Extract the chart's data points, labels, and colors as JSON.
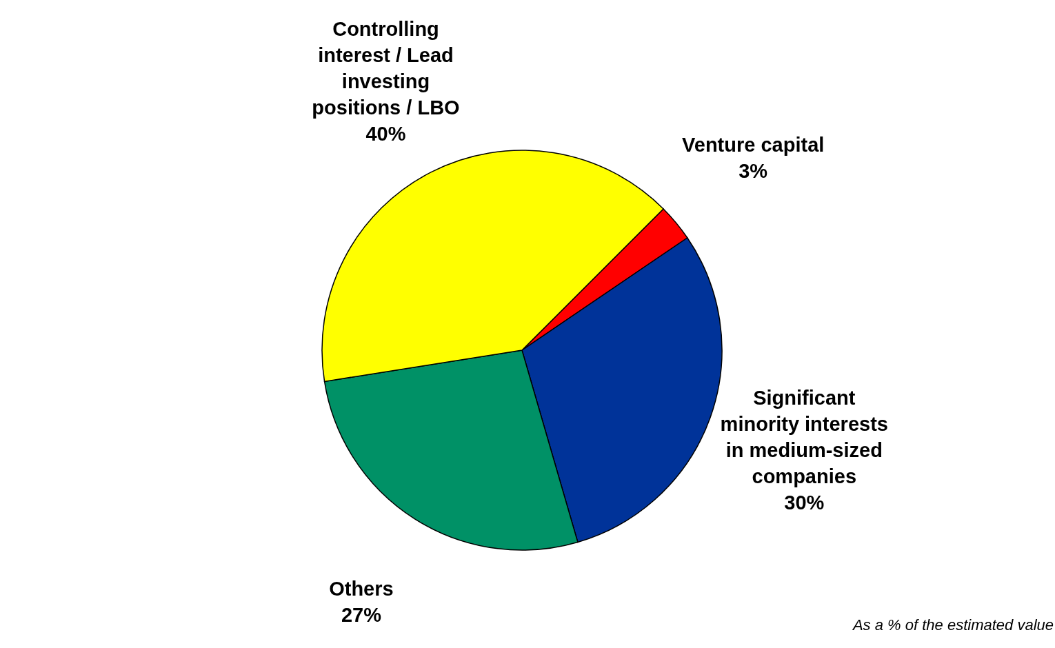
{
  "chart_data": {
    "type": "pie",
    "categories": [
      "Venture capital",
      "Significant minority interests in medium-sized companies",
      "Others",
      "Controlling interest / Lead investing positions / LBO"
    ],
    "values": [
      3,
      30,
      27,
      40
    ],
    "value_labels": [
      "3%",
      "30%",
      "27%",
      "40%"
    ],
    "colors": [
      "#ff0000",
      "#003399",
      "#009166",
      "#ffff00"
    ],
    "annotations": [
      "As a % of the estimated value"
    ]
  }
}
